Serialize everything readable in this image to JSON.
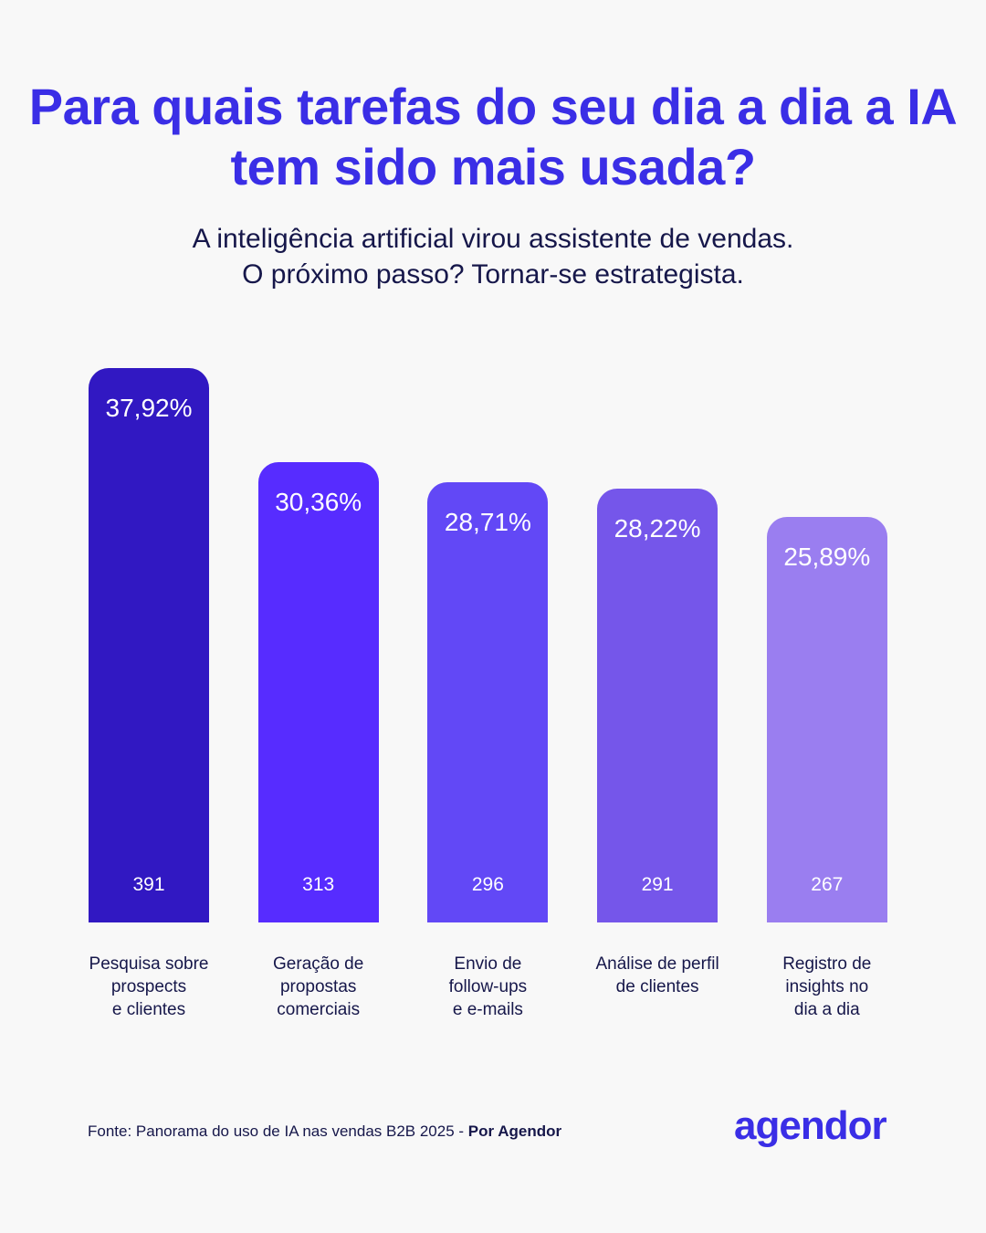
{
  "title": "Para quais tarefas do seu dia a dia a IA tem sido mais usada?",
  "subtitle_line1": "A inteligência artificial virou assistente de vendas.",
  "subtitle_line2": "O próximo passo? Tornar-se estrategista.",
  "source_text": "Fonte: Panorama do uso de IA nas vendas B2B 2025 - ",
  "source_bold": "Por Agendor",
  "logo": "agendor",
  "chart_data": {
    "type": "bar",
    "title": "Para quais tarefas do seu dia a dia a IA tem sido mais usada?",
    "categories": [
      "Pesquisa sobre\nprospects\ne clientes",
      "Geração de\npropostas\ncomerciais",
      "Envio de\nfollow-ups\ne e-mails",
      "Análise de perfil\nde clientes",
      "Registro de\ninsights no\ndia a dia"
    ],
    "values": [
      37.92,
      30.36,
      28.71,
      28.22,
      25.89
    ],
    "value_labels": [
      "37,92%",
      "30,36%",
      "28,71%",
      "28,22%",
      "25,89%"
    ],
    "counts": [
      "391",
      "313",
      "296",
      "291",
      "267"
    ],
    "colors": [
      "#3118c2",
      "#572cff",
      "#6248f6",
      "#7556ea",
      "#9a7ef0"
    ],
    "grid": false,
    "legend": "none"
  }
}
